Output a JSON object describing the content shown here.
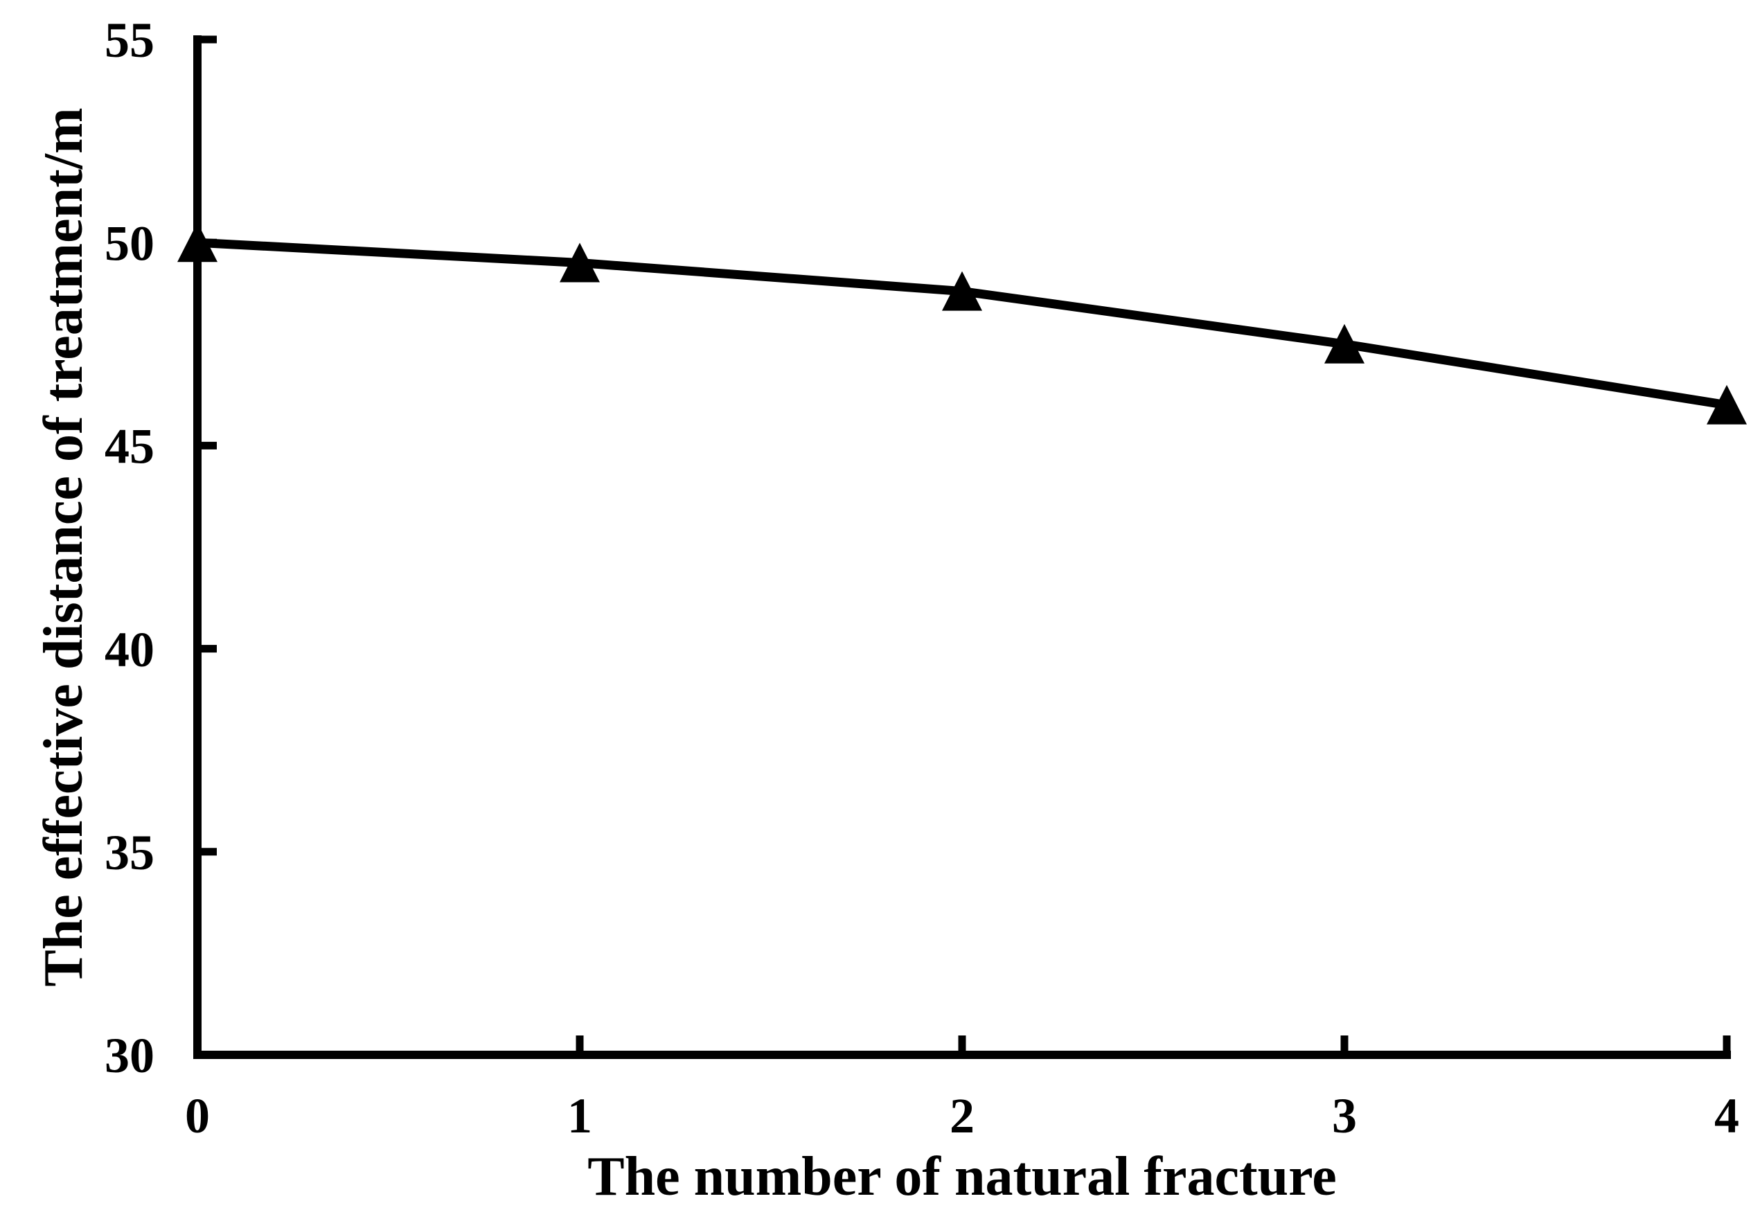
{
  "figure": {
    "background": "#ffffff",
    "ink_color": "#000000"
  },
  "chart_data": {
    "type": "line",
    "title": "",
    "xlabel": "The number of natural fracture",
    "ylabel": "The effective distance of treatment/m",
    "x": [
      0,
      1,
      2,
      3,
      4
    ],
    "series": [
      {
        "name": "effective-distance-of-treatment",
        "marker": "filled-triangle-up",
        "color": "#000000",
        "values": [
          50,
          49.5,
          48.8,
          47.5,
          46
        ]
      }
    ],
    "xlim": [
      0,
      4
    ],
    "ylim": [
      30,
      55
    ],
    "x_ticks": [
      0,
      1,
      2,
      3,
      4
    ],
    "y_ticks": [
      30,
      35,
      40,
      45,
      50,
      55
    ],
    "x_tick_labels": [
      "0",
      "1",
      "2",
      "3",
      "4"
    ],
    "y_tick_labels": [
      "30",
      "35",
      "40",
      "45",
      "50",
      "55"
    ],
    "tick_direction": "in",
    "grid": false,
    "legend": false
  }
}
